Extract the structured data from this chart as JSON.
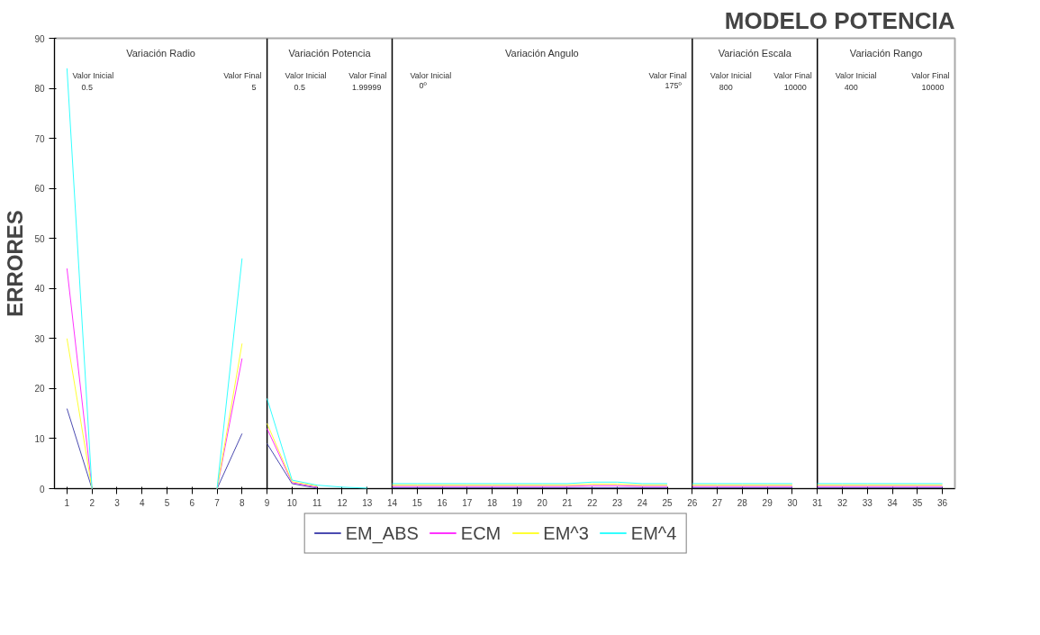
{
  "chart_data": {
    "type": "line",
    "title": "MODELO POTENCIA",
    "ylabel": "ERRORES",
    "x": [
      1,
      2,
      3,
      4,
      5,
      6,
      7,
      8,
      8.5,
      9,
      10,
      11,
      12,
      13,
      13.5,
      14,
      15,
      16,
      17,
      18,
      19,
      20,
      21,
      22,
      23,
      24,
      25,
      25.5,
      26,
      27,
      28,
      29,
      30,
      30.5,
      31,
      32,
      33,
      34,
      35,
      36
    ],
    "series": [
      {
        "name": "EM_ABS",
        "color": "#4b4bb0",
        "values": [
          16,
          0,
          null,
          null,
          null,
          null,
          0,
          11,
          null,
          9,
          1,
          0.1,
          null,
          null,
          null,
          0.2,
          0.2,
          0.2,
          0.2,
          0.2,
          0.2,
          0.2,
          0.2,
          0.2,
          0.2,
          0.2,
          0.2,
          null,
          0.2,
          0.2,
          0.2,
          0.2,
          0.2,
          null,
          0.2,
          0.2,
          0.2,
          0.2,
          0.2,
          0.2
        ]
      },
      {
        "name": "ECM",
        "color": "#ff33ff",
        "values": [
          44,
          0,
          null,
          null,
          null,
          null,
          0,
          26,
          null,
          12,
          1.2,
          0.3,
          null,
          null,
          null,
          0.45,
          0.45,
          0.45,
          0.45,
          0.45,
          0.45,
          0.45,
          0.45,
          0.6,
          0.6,
          0.45,
          0.45,
          null,
          0.45,
          0.45,
          0.45,
          0.45,
          0.45,
          null,
          0.45,
          0.45,
          0.45,
          0.45,
          0.45,
          0.45
        ]
      },
      {
        "name": "EM^3",
        "color": "#ffff33",
        "values": [
          30,
          0,
          null,
          null,
          null,
          null,
          0,
          29,
          null,
          13,
          1.4,
          0.5,
          null,
          null,
          null,
          0.7,
          0.7,
          0.7,
          0.7,
          0.7,
          0.7,
          0.7,
          0.7,
          0.9,
          0.9,
          0.7,
          0.7,
          null,
          0.7,
          0.7,
          0.7,
          0.7,
          0.7,
          null,
          0.7,
          0.7,
          0.7,
          0.7,
          0.7,
          0.7
        ]
      },
      {
        "name": "EM^4",
        "color": "#33ffff",
        "values": [
          84,
          0,
          null,
          null,
          null,
          null,
          0,
          46,
          null,
          18,
          1.7,
          0.7,
          0.3,
          0.1,
          null,
          1,
          1,
          1,
          1,
          1,
          1,
          1,
          1,
          1.3,
          1.3,
          1,
          1,
          null,
          1,
          1,
          1,
          1,
          1,
          null,
          1,
          1,
          1,
          1,
          1,
          1
        ]
      }
    ],
    "xlim": [
      0.5,
      36.5
    ],
    "xticks": [
      1,
      2,
      3,
      4,
      5,
      6,
      7,
      8,
      9,
      10,
      11,
      12,
      13,
      14,
      15,
      16,
      17,
      18,
      19,
      20,
      21,
      22,
      23,
      24,
      25,
      26,
      27,
      28,
      29,
      30,
      31,
      32,
      33,
      34,
      35,
      36
    ],
    "ylim": [
      0,
      90
    ],
    "yticks": [
      0,
      10,
      20,
      30,
      40,
      50,
      60,
      70,
      80,
      90
    ],
    "legend": "bottom",
    "marker": "none",
    "line_style": "solid",
    "ref_lines": [
      {
        "axis": "x",
        "value": 9,
        "color": "#000000"
      },
      {
        "axis": "x",
        "value": 14,
        "color": "#000000"
      },
      {
        "axis": "x",
        "value": 26,
        "color": "#000000"
      },
      {
        "axis": "x",
        "value": 31,
        "color": "#000000"
      }
    ],
    "annotations": [
      "Variación Radio",
      "Valor Inicial",
      "0.5",
      "Valor Final",
      "5",
      "Variación Potencia",
      "Valor Inicial",
      "0.5",
      "Valor Final",
      "1.99999",
      "Variación Angulo",
      "Valor Inicial",
      "0º",
      "Valor Final",
      "175º",
      "Variación Escala",
      "Valor Inicial",
      "800",
      "Valor Final",
      "10000",
      "Variación Rango",
      "Valor Inicial",
      "400",
      "Valor Final",
      "10000"
    ]
  }
}
